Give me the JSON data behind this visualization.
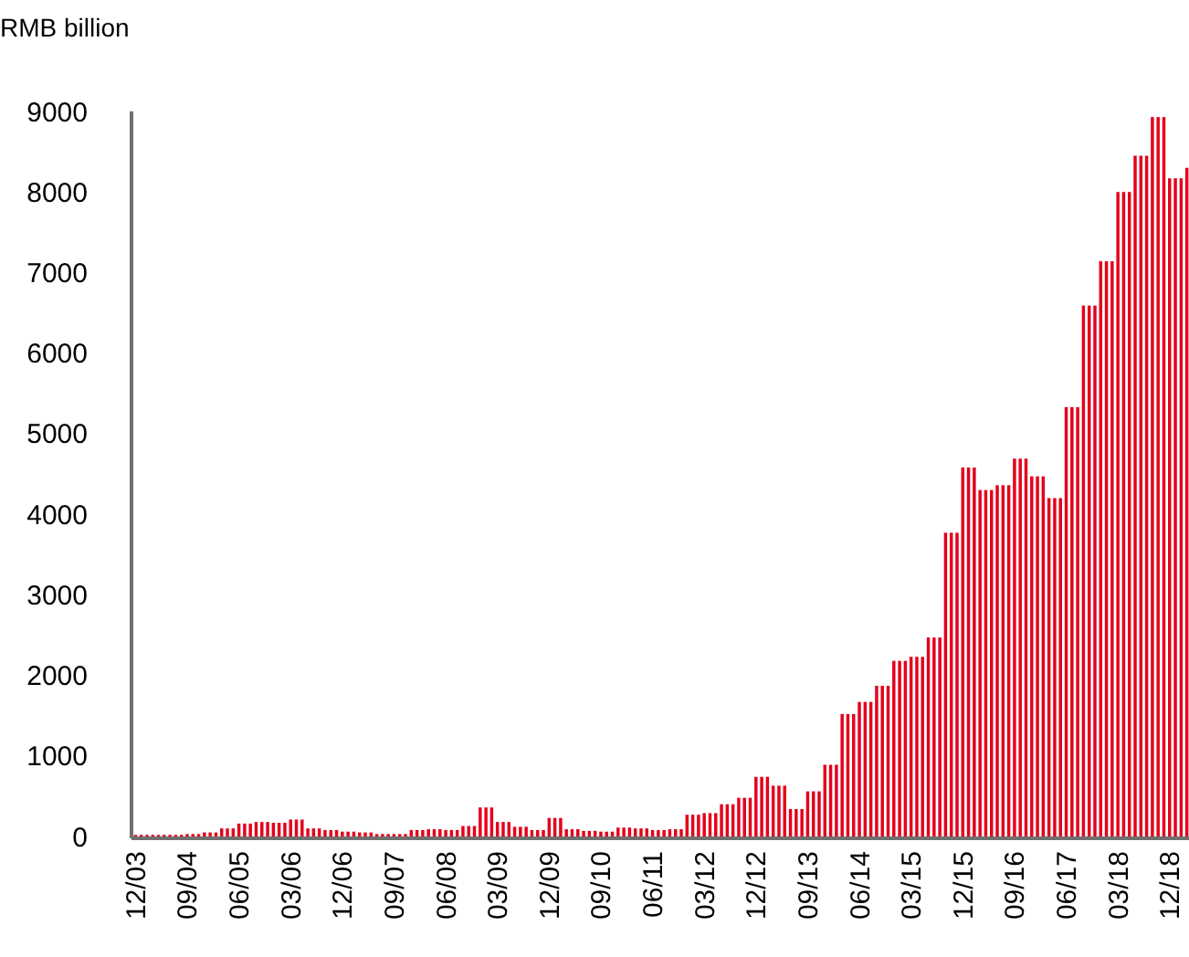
{
  "chart_data": {
    "type": "bar",
    "ylabel": "RMB billion",
    "color": "#e3001b",
    "ylim": [
      0,
      9000
    ],
    "yticks": [
      0,
      1000,
      2000,
      3000,
      4000,
      5000,
      6000,
      7000,
      8000,
      9000
    ],
    "categories": [
      "12/03",
      null,
      null,
      null,
      null,
      null,
      null,
      null,
      null,
      "09/04",
      null,
      null,
      null,
      null,
      null,
      null,
      null,
      null,
      "06/05",
      null,
      null,
      null,
      null,
      null,
      null,
      null,
      null,
      "03/06",
      null,
      null,
      null,
      null,
      null,
      null,
      null,
      null,
      "12/06",
      null,
      null,
      null,
      null,
      null,
      null,
      null,
      null,
      "09/07",
      null,
      null,
      null,
      null,
      null,
      null,
      null,
      null,
      "06/08",
      null,
      null,
      null,
      null,
      null,
      null,
      null,
      null,
      "03/09",
      null,
      null,
      null,
      null,
      null,
      null,
      null,
      null,
      "12/09",
      null,
      null,
      null,
      null,
      null,
      null,
      null,
      null,
      "09/10",
      null,
      null,
      null,
      null,
      null,
      null,
      null,
      null,
      "06/11",
      null,
      null,
      null,
      null,
      null,
      null,
      null,
      null,
      "03/12",
      null,
      null,
      null,
      null,
      null,
      null,
      null,
      null,
      "12/12",
      null,
      null,
      null,
      null,
      null,
      null,
      null,
      null,
      "09/13",
      null,
      null,
      null,
      null,
      null,
      null,
      null,
      null,
      "06/14",
      null,
      null,
      null,
      null,
      null,
      null,
      null,
      null,
      "03/15",
      null,
      null,
      null,
      null,
      null,
      null,
      null,
      null,
      "12/15",
      null,
      null,
      null,
      null,
      null,
      null,
      null,
      null,
      "09/16",
      null,
      null,
      null,
      null,
      null,
      null,
      null,
      null,
      "06/17",
      null,
      null,
      null,
      null,
      null,
      null,
      null,
      null,
      "03/18",
      null,
      null,
      null,
      null,
      null,
      null,
      null,
      null,
      "12/18",
      null,
      null,
      null
    ],
    "values": [
      20,
      20,
      20,
      20,
      20,
      20,
      20,
      20,
      20,
      30,
      30,
      30,
      50,
      50,
      50,
      100,
      100,
      100,
      160,
      160,
      160,
      180,
      180,
      180,
      170,
      170,
      170,
      210,
      210,
      210,
      100,
      100,
      100,
      80,
      80,
      80,
      60,
      60,
      60,
      50,
      50,
      50,
      30,
      30,
      30,
      30,
      30,
      30,
      80,
      80,
      80,
      90,
      90,
      90,
      80,
      80,
      80,
      130,
      130,
      130,
      360,
      360,
      360,
      180,
      180,
      180,
      120,
      120,
      120,
      80,
      80,
      80,
      230,
      230,
      230,
      90,
      90,
      90,
      70,
      70,
      70,
      60,
      60,
      60,
      110,
      110,
      110,
      100,
      100,
      100,
      80,
      80,
      80,
      90,
      90,
      90,
      270,
      270,
      270,
      290,
      290,
      290,
      400,
      400,
      400,
      480,
      480,
      480,
      740,
      740,
      740,
      630,
      630,
      630,
      340,
      340,
      340,
      560,
      560,
      560,
      890,
      890,
      890,
      1520,
      1520,
      1520,
      1670,
      1670,
      1670,
      1870,
      1870,
      1870,
      2180,
      2180,
      2180,
      2230,
      2230,
      2230,
      2470,
      2470,
      2470,
      3770,
      3770,
      3770,
      4580,
      4580,
      4580,
      4300,
      4300,
      4300,
      4360,
      4360,
      4360,
      4690,
      4690,
      4690,
      4470,
      4470,
      4470,
      4200,
      4200,
      4200,
      5330,
      5330,
      5330,
      6590,
      6590,
      6590,
      7140,
      7140,
      7140,
      8000,
      8000,
      8000,
      8450,
      8450,
      8450,
      8930,
      8930,
      8930,
      8170,
      8170,
      8170,
      8300
    ]
  }
}
